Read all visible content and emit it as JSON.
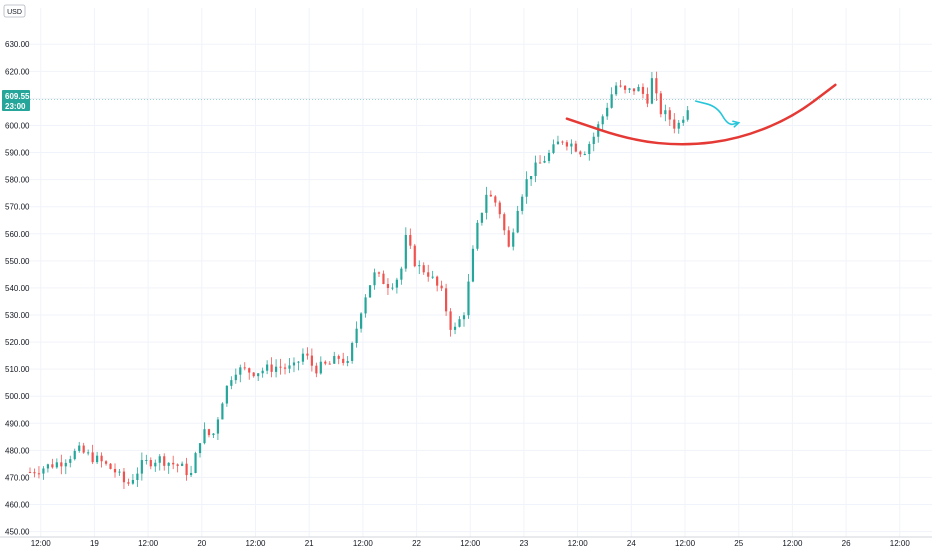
{
  "chart_data": {
    "type": "candlestick",
    "currency_label": "USD",
    "y_ticks": [
      "630.00",
      "620.00",
      "610.00",
      "600.00",
      "590.00",
      "580.00",
      "570.00",
      "560.00",
      "550.00",
      "540.00",
      "530.00",
      "520.00",
      "510.00",
      "500.00",
      "490.00",
      "480.00",
      "470.00",
      "460.00",
      "450.00"
    ],
    "ylim": [
      448,
      636
    ],
    "x_ticks": [
      {
        "label": "12:00",
        "day": 18.5
      },
      {
        "label": "19",
        "day": 19
      },
      {
        "label": "12:00",
        "day": 19.5
      },
      {
        "label": "20",
        "day": 20
      },
      {
        "label": "12:00",
        "day": 20.5
      },
      {
        "label": "21",
        "day": 21
      },
      {
        "label": "12:00",
        "day": 21.5
      },
      {
        "label": "22",
        "day": 22
      },
      {
        "label": "12:00",
        "day": 22.5
      },
      {
        "label": "23",
        "day": 23
      },
      {
        "label": "12:00",
        "day": 23.5
      },
      {
        "label": "24",
        "day": 24
      },
      {
        "label": "12:00",
        "day": 24.5
      },
      {
        "label": "25",
        "day": 25
      },
      {
        "label": "12:00",
        "day": 25.5
      },
      {
        "label": "26",
        "day": 26
      },
      {
        "label": "12:00",
        "day": 26.5
      }
    ],
    "xlim": [
      18.4,
      26.8
    ],
    "last_price": {
      "value": 609.55,
      "label": "609.55",
      "countdown": "23:00"
    },
    "series_keypoints": [
      {
        "day": 18.4,
        "price": 472
      },
      {
        "day": 18.7,
        "price": 476
      },
      {
        "day": 18.85,
        "price": 480
      },
      {
        "day": 19.05,
        "price": 476
      },
      {
        "day": 19.2,
        "price": 472
      },
      {
        "day": 19.3,
        "price": 467
      },
      {
        "day": 19.45,
        "price": 475
      },
      {
        "day": 19.6,
        "price": 477
      },
      {
        "day": 19.8,
        "price": 474
      },
      {
        "day": 19.9,
        "price": 471
      },
      {
        "day": 20.0,
        "price": 487
      },
      {
        "day": 20.1,
        "price": 485
      },
      {
        "day": 20.2,
        "price": 500
      },
      {
        "day": 20.3,
        "price": 510
      },
      {
        "day": 20.5,
        "price": 509
      },
      {
        "day": 20.7,
        "price": 511
      },
      {
        "day": 20.85,
        "price": 510
      },
      {
        "day": 20.95,
        "price": 516
      },
      {
        "day": 21.05,
        "price": 510
      },
      {
        "day": 21.2,
        "price": 512
      },
      {
        "day": 21.3,
        "price": 515
      },
      {
        "day": 21.35,
        "price": 510
      },
      {
        "day": 21.5,
        "price": 535
      },
      {
        "day": 21.6,
        "price": 545
      },
      {
        "day": 21.75,
        "price": 541
      },
      {
        "day": 21.85,
        "price": 545
      },
      {
        "day": 21.9,
        "price": 558
      },
      {
        "day": 22.0,
        "price": 548
      },
      {
        "day": 22.1,
        "price": 546
      },
      {
        "day": 22.2,
        "price": 540
      },
      {
        "day": 22.25,
        "price": 537
      },
      {
        "day": 22.3,
        "price": 527
      },
      {
        "day": 22.35,
        "price": 524
      },
      {
        "day": 22.45,
        "price": 532
      },
      {
        "day": 22.55,
        "price": 560
      },
      {
        "day": 22.65,
        "price": 575
      },
      {
        "day": 22.75,
        "price": 571
      },
      {
        "day": 22.8,
        "price": 565
      },
      {
        "day": 22.85,
        "price": 553
      },
      {
        "day": 22.95,
        "price": 572
      },
      {
        "day": 23.05,
        "price": 582
      },
      {
        "day": 23.15,
        "price": 586
      },
      {
        "day": 23.25,
        "price": 590
      },
      {
        "day": 23.35,
        "price": 595
      },
      {
        "day": 23.45,
        "price": 593
      },
      {
        "day": 23.55,
        "price": 590
      },
      {
        "day": 23.65,
        "price": 596
      },
      {
        "day": 23.75,
        "price": 605
      },
      {
        "day": 23.85,
        "price": 615
      },
      {
        "day": 23.95,
        "price": 612
      },
      {
        "day": 24.05,
        "price": 614
      },
      {
        "day": 24.15,
        "price": 610
      },
      {
        "day": 24.2,
        "price": 618
      },
      {
        "day": 24.25,
        "price": 606
      },
      {
        "day": 24.35,
        "price": 603
      },
      {
        "day": 24.42,
        "price": 599
      },
      {
        "day": 24.5,
        "price": 605
      },
      {
        "day": 24.55,
        "price": 609.55
      }
    ],
    "drawings": [
      {
        "type": "arc",
        "color": "#e53935",
        "points": [
          [
            23.4,
            602.5
          ],
          [
            24.0,
            594.5
          ],
          [
            24.5,
            592.5
          ],
          [
            25.0,
            595
          ],
          [
            25.5,
            603
          ],
          [
            25.9,
            615
          ]
        ]
      },
      {
        "type": "arrow",
        "color": "#26c6da",
        "points": [
          [
            24.6,
            609
          ],
          [
            24.8,
            607
          ],
          [
            24.9,
            600
          ],
          [
            25.0,
            601
          ]
        ]
      }
    ],
    "colors": {
      "up": "#26a69a",
      "down": "#ef5350",
      "arc": "#e53935",
      "arrow": "#26c6da",
      "price_line": "#26a69a",
      "grid": "#f0f3fa"
    }
  }
}
